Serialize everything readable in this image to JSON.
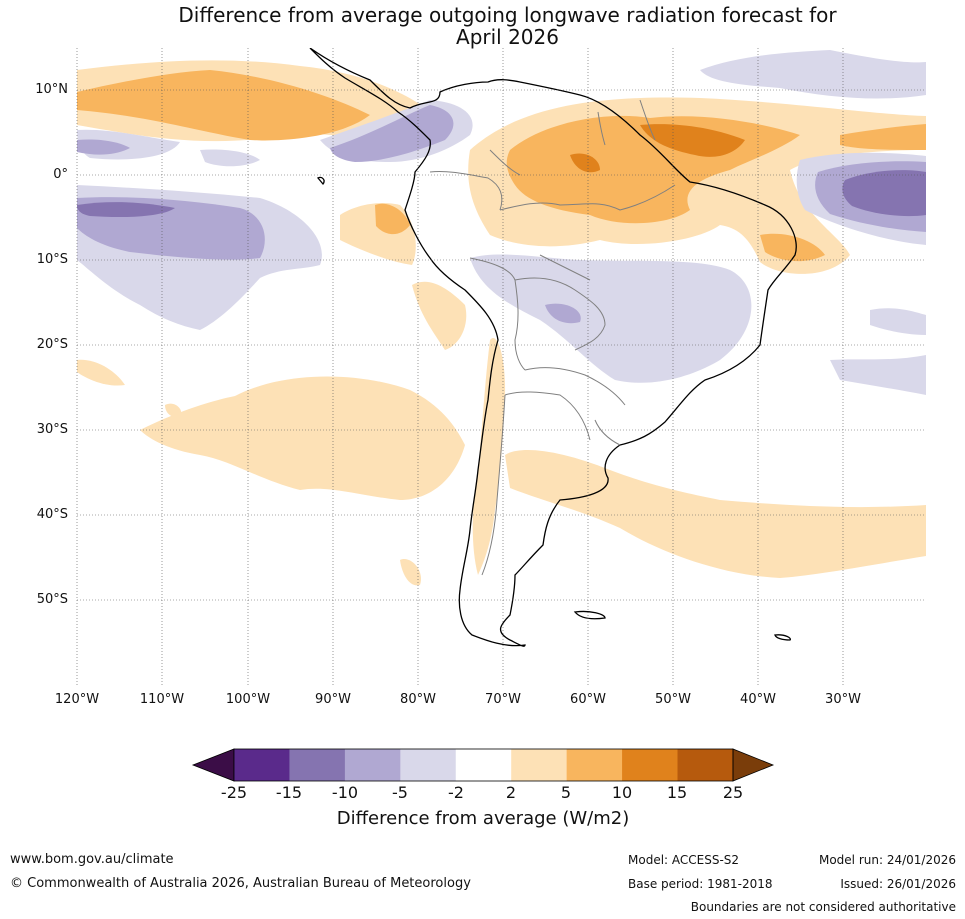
{
  "title": {
    "line1": "Difference from average outgoing longwave radiation forecast for",
    "line2": "April 2026"
  },
  "map": {
    "latitude_labels": [
      "10°N",
      "0°",
      "10°S",
      "20°S",
      "30°S",
      "40°S",
      "50°S"
    ],
    "longitude_labels": [
      "120°W",
      "110°W",
      "100°W",
      "90°W",
      "80°W",
      "70°W",
      "60°W",
      "50°W",
      "40°W",
      "30°W"
    ]
  },
  "colorbar": {
    "ticks": [
      "-25",
      "-15",
      "-10",
      "-5",
      "-2",
      "2",
      "5",
      "10",
      "15",
      "25"
    ],
    "colors": [
      "#3b0d47",
      "#5a2a8b",
      "#8574b0",
      "#b0a8d2",
      "#d9d8ea",
      "#ffffff",
      "#fde1b6",
      "#f8b55e",
      "#e0821c",
      "#b65a0d",
      "#7a3d0a"
    ],
    "label": "Difference from average (W/m2)"
  },
  "footer": {
    "website": "www.bom.gov.au/climate",
    "copyright": "© Commonwealth of Australia 2026, Australian Bureau of Meteorology",
    "model": "Model: ACCESS-S2",
    "model_run": "Model run: 24/01/2026",
    "base_period": "Base period: 1981-2018",
    "issued": "Issued: 26/01/2026",
    "disclaimer": "Boundaries are not considered authoritative"
  }
}
